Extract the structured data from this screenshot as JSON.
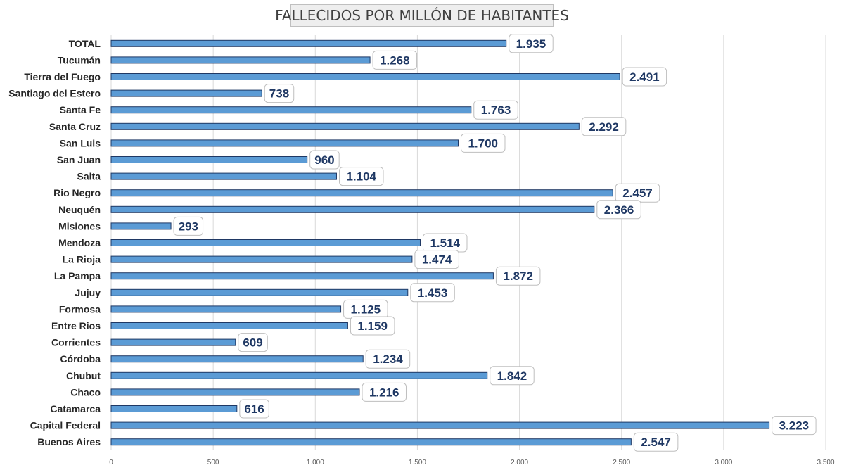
{
  "chart_data": {
    "type": "bar",
    "orientation": "horizontal",
    "title": "FALLECIDOS POR MILLÓN DE HABITANTES",
    "xlabel": "",
    "ylabel": "",
    "xlim": [
      0,
      3500
    ],
    "x_ticks": [
      0,
      500,
      1000,
      1500,
      2000,
      2500,
      3000,
      3500
    ],
    "x_tick_labels": [
      "0",
      "500",
      "1.000",
      "1.500",
      "2.000",
      "2.500",
      "3.000",
      "3.500"
    ],
    "grid": "vertical",
    "bar_color": "#5b9bd5",
    "bar_border_color": "#1f3864",
    "label_color": "#1f3864",
    "categories": [
      "TOTAL",
      "Tucumán",
      "Tierra del Fuego",
      "Santiago del Estero",
      "Santa Fe",
      "Santa Cruz",
      "San Luis",
      "San Juan",
      "Salta",
      "Rio Negro",
      "Neuquén",
      "Misiones",
      "Mendoza",
      "La Rioja",
      "La Pampa",
      "Jujuy",
      "Formosa",
      "Entre Rios",
      "Corrientes",
      "Córdoba",
      "Chubut",
      "Chaco",
      "Catamarca",
      "Capital Federal",
      "Buenos Aires"
    ],
    "values": [
      1935,
      1268,
      2491,
      738,
      1763,
      2292,
      1700,
      960,
      1104,
      2457,
      2366,
      293,
      1514,
      1474,
      1872,
      1453,
      1125,
      1159,
      609,
      1234,
      1842,
      1216,
      616,
      3223,
      2547
    ],
    "value_labels": [
      "1.935",
      "1.268",
      "2.491",
      "738",
      "1.763",
      "2.292",
      "1.700",
      "960",
      "1.104",
      "2.457",
      "2.366",
      "293",
      "1.514",
      "1.474",
      "1.872",
      "1.453",
      "1.125",
      "1.159",
      "609",
      "1.234",
      "1.842",
      "1.216",
      "616",
      "3.223",
      "2.547"
    ]
  }
}
